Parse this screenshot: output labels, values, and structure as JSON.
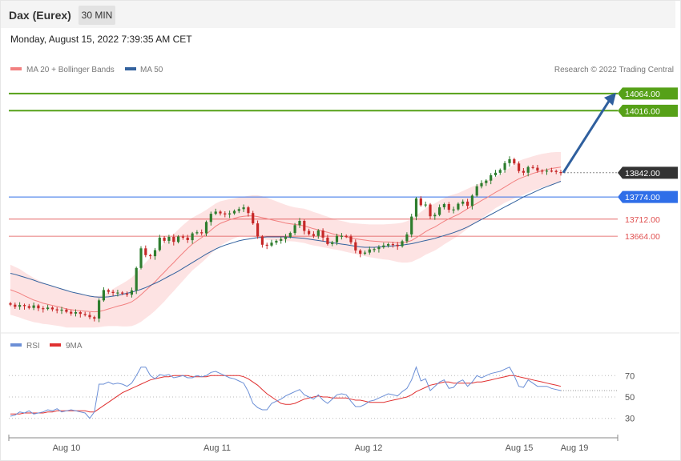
{
  "header": {
    "title": "Dax (Eurex)",
    "timeframe": "30 MIN"
  },
  "datetime": "Monday, August 15, 2022 7:39:35 AM CET",
  "legend": {
    "ma20": "MA 20 + Bollinger Bands",
    "ma50": "MA 50",
    "copyright": "Research © 2022 Trading Central"
  },
  "colors": {
    "ma20": "#f28080",
    "ma50": "#33629e",
    "band": "#fcdcdc",
    "bull": "#2e7d2e",
    "bear": "#c62828",
    "rsi": "#6b8fd6",
    "rsi_ma": "#e03030",
    "resistance": "#56a118",
    "support_blue": "#2f6ee8",
    "support_red": "#e05050",
    "current": "#333333",
    "arrow": "#2f5f9e"
  },
  "chart_data": [
    {
      "type": "candlestick",
      "title": "Dax (Eurex)",
      "ylim": [
        13395,
        14102
      ],
      "x_ticks": [
        "Aug 10",
        "Aug 11",
        "Aug 12",
        "Aug 15",
        "Aug 19"
      ],
      "current_price": "13842.00",
      "levels": [
        {
          "value": "14064.00",
          "kind": "resistance"
        },
        {
          "value": "14016.00",
          "kind": "resistance"
        },
        {
          "value": "13842.00",
          "kind": "current"
        },
        {
          "value": "13774.00",
          "kind": "support_blue"
        },
        {
          "value": "13712.00",
          "kind": "support_red"
        },
        {
          "value": "13664.00",
          "kind": "support_red"
        }
      ],
      "projection": {
        "from": 13842,
        "to": 14062
      },
      "closes": [
        13472,
        13466,
        13471,
        13468,
        13463,
        13470,
        13462,
        13460,
        13464,
        13459,
        13456,
        13458,
        13452,
        13447,
        13451,
        13446,
        13443,
        13437,
        13433,
        13484,
        13513,
        13508,
        13505,
        13506,
        13503,
        13500,
        13512,
        13575,
        13630,
        13611,
        13608,
        13625,
        13660,
        13651,
        13662,
        13648,
        13663,
        13660,
        13653,
        13672,
        13675,
        13672,
        13704,
        13727,
        13733,
        13728,
        13725,
        13728,
        13735,
        13740,
        13745,
        13729,
        13700,
        13663,
        13640,
        13638,
        13646,
        13651,
        13656,
        13662,
        13673,
        13695,
        13707,
        13679,
        13670,
        13665,
        13680,
        13660,
        13642,
        13647,
        13665,
        13665,
        13663,
        13647,
        13624,
        13615,
        13618,
        13627,
        13628,
        13633,
        13638,
        13642,
        13640,
        13636,
        13650,
        13669,
        13719,
        13770,
        13751,
        13753,
        13720,
        13724,
        13745,
        13754,
        13738,
        13739,
        13755,
        13761,
        13749,
        13778,
        13804,
        13813,
        13820,
        13835,
        13842,
        13850,
        13869,
        13880,
        13868,
        13847,
        13842,
        13858,
        13856,
        13848,
        13846,
        13848,
        13847,
        13844,
        13842
      ],
      "ma20": [
        13514,
        13509,
        13504,
        13497,
        13491,
        13485,
        13481,
        13476,
        13473,
        13470,
        13467,
        13464,
        13460,
        13458,
        13456,
        13455,
        13454,
        13453,
        13452,
        13453,
        13456,
        13460,
        13464,
        13468,
        13471,
        13475,
        13480,
        13489,
        13500,
        13512,
        13524,
        13536,
        13550,
        13563,
        13577,
        13590,
        13604,
        13617,
        13630,
        13642,
        13651,
        13660,
        13670,
        13681,
        13692,
        13700,
        13705,
        13710,
        13714,
        13718,
        13720,
        13721,
        13721,
        13719,
        13716,
        13713,
        13710,
        13707,
        13704,
        13701,
        13699,
        13697,
        13695,
        13693,
        13689,
        13685,
        13682,
        13678,
        13675,
        13671,
        13668,
        13665,
        13662,
        13659,
        13657,
        13655,
        13653,
        13651,
        13650,
        13649,
        13648,
        13648,
        13647,
        13646,
        13646,
        13648,
        13652,
        13660,
        13668,
        13677,
        13684,
        13690,
        13698,
        13706,
        13713,
        13719,
        13725,
        13733,
        13741,
        13749,
        13756,
        13764,
        13771,
        13779,
        13787,
        13794,
        13802,
        13810,
        13818,
        13825,
        13830,
        13835,
        13840,
        13844,
        13848,
        13851,
        13854,
        13856,
        13858
      ],
      "ma50": [
        13560,
        13557,
        13553,
        13549,
        13545,
        13541,
        13536,
        13532,
        13528,
        13524,
        13520,
        13516,
        13512,
        13508,
        13505,
        13502,
        13499,
        13496,
        13494,
        13493,
        13493,
        13494,
        13496,
        13498,
        13501,
        13504,
        13507,
        13511,
        13515,
        13520,
        13526,
        13532,
        13538,
        13545,
        13552,
        13559,
        13566,
        13574,
        13582,
        13590,
        13598,
        13606,
        13614,
        13621,
        13628,
        13634,
        13639,
        13643,
        13647,
        13651,
        13654,
        13656,
        13658,
        13660,
        13661,
        13662,
        13662,
        13662,
        13662,
        13662,
        13661,
        13660,
        13659,
        13658,
        13656,
        13654,
        13652,
        13650,
        13648,
        13646,
        13644,
        13642,
        13640,
        13638,
        13636,
        13634,
        13633,
        13633,
        13633,
        13634,
        13635,
        13636,
        13637,
        13638,
        13639,
        13641,
        13643,
        13646,
        13649,
        13652,
        13655,
        13658,
        13662,
        13666,
        13670,
        13674,
        13679,
        13684,
        13690,
        13697,
        13704,
        13711,
        13718,
        13725,
        13732,
        13739,
        13746,
        13753,
        13760,
        13767,
        13774,
        13780,
        13786,
        13792,
        13798,
        13803,
        13808,
        13813,
        13818
      ],
      "band_width": [
        70,
        69,
        68,
        66,
        64,
        62,
        60,
        58,
        56,
        55,
        54,
        53,
        52,
        50,
        48,
        47,
        46,
        45,
        44,
        44,
        45,
        48,
        52,
        56,
        60,
        64,
        68,
        72,
        76,
        78,
        80,
        81,
        82,
        82,
        81,
        80,
        79,
        78,
        76,
        74,
        72,
        70,
        68,
        66,
        64,
        62,
        60,
        58,
        56,
        55,
        55,
        56,
        58,
        60,
        60,
        59,
        57,
        55,
        53,
        51,
        49,
        48,
        48,
        48,
        48,
        47,
        46,
        45,
        44,
        43,
        42,
        42,
        42,
        42,
        43,
        44,
        45,
        46,
        47,
        48,
        49,
        50,
        52,
        54,
        56,
        58,
        60,
        62,
        64,
        65,
        66,
        66,
        66,
        65,
        64,
        62,
        60,
        58,
        56,
        54,
        52,
        50,
        48,
        46,
        44,
        44,
        44,
        46,
        48,
        50,
        50,
        49,
        48,
        48,
        47,
        46,
        45,
        44,
        42
      ],
      "x_range": [
        13,
        700
      ]
    },
    {
      "type": "line",
      "title": "RSI",
      "ylim": [
        17,
        92
      ],
      "y_ticks": [
        70,
        50,
        30
      ],
      "series": [
        {
          "name": "RSI",
          "values": [
            32,
            33,
            36,
            35,
            37,
            34,
            35,
            36,
            38,
            37,
            39,
            36,
            37,
            38,
            37,
            36,
            35,
            30,
            36,
            62,
            62,
            64,
            62,
            63,
            62,
            60,
            63,
            70,
            78,
            78,
            70,
            67,
            71,
            70,
            71,
            68,
            69,
            70,
            68,
            68,
            70,
            69,
            70,
            73,
            74,
            72,
            70,
            68,
            67,
            65,
            63,
            55,
            44,
            40,
            38,
            38,
            44,
            46,
            48,
            51,
            53,
            55,
            57,
            52,
            50,
            48,
            52,
            47,
            44,
            48,
            52,
            53,
            52,
            46,
            41,
            41,
            43,
            46,
            47,
            49,
            51,
            53,
            52,
            51,
            55,
            58,
            66,
            78,
            65,
            67,
            56,
            60,
            64,
            66,
            58,
            59,
            64,
            66,
            60,
            64,
            70,
            68,
            70,
            72,
            73,
            74,
            76,
            78,
            70,
            60,
            59,
            66,
            63,
            60,
            60,
            60,
            58,
            57,
            56
          ]
        },
        {
          "name": "9MA",
          "values": [
            34,
            34,
            34,
            35,
            35,
            35,
            35,
            35,
            36,
            36,
            37,
            37,
            37,
            37,
            37,
            37,
            37,
            36,
            36,
            39,
            42,
            45,
            48,
            51,
            54,
            56,
            58,
            60,
            62,
            64,
            66,
            67,
            68,
            69,
            69,
            70,
            70,
            70,
            70,
            69,
            69,
            69,
            69,
            70,
            70,
            70,
            70,
            70,
            70,
            70,
            69,
            67,
            64,
            61,
            57,
            53,
            50,
            47,
            44,
            43,
            43,
            44,
            46,
            48,
            49,
            50,
            51,
            50,
            50,
            49,
            49,
            49,
            49,
            48,
            47,
            47,
            46,
            45,
            45,
            45,
            45,
            46,
            47,
            48,
            49,
            50,
            52,
            55,
            57,
            59,
            61,
            62,
            63,
            64,
            64,
            63,
            63,
            63,
            63,
            63,
            64,
            64,
            65,
            66,
            67,
            68,
            69,
            70,
            70,
            69,
            68,
            67,
            66,
            65,
            64,
            63,
            62,
            61,
            60
          ]
        }
      ],
      "x_range": [
        13,
        700
      ]
    }
  ]
}
